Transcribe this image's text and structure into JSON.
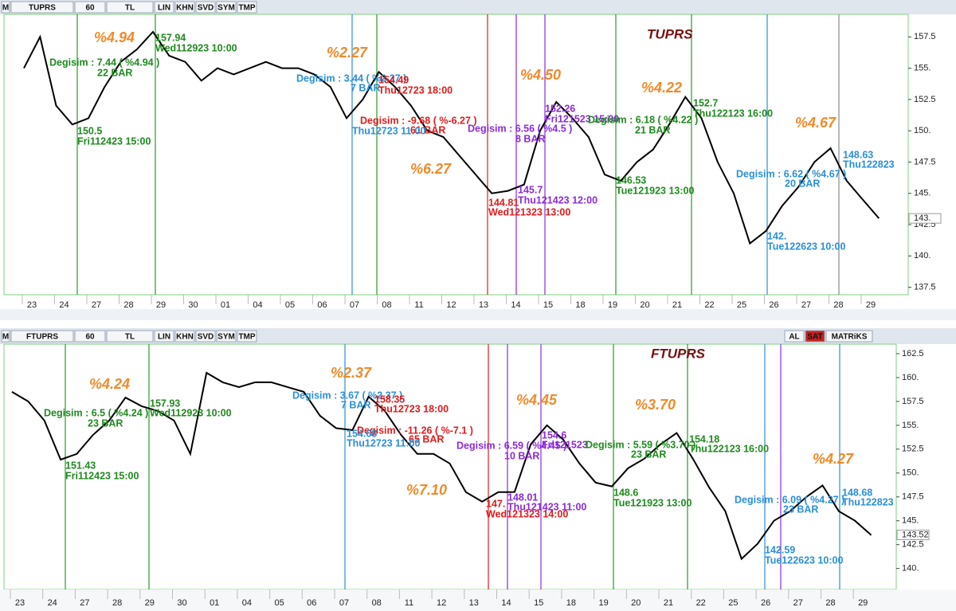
{
  "panels": [
    {
      "toolbar": [
        "M",
        "TUPRS",
        "60",
        "TL",
        "LIN",
        "KHN",
        "SVD",
        "SYM",
        "TMP"
      ],
      "title": "TUPRS",
      "ylim": [
        136.9,
        159.3
      ],
      "yticks": [
        137.5,
        {
          "value": 140,
          "label": "140."
        },
        142.5,
        {
          "value": 145,
          "label": "145."
        },
        147.5,
        {
          "value": 150,
          "label": "150."
        },
        152.5,
        {
          "value": 155,
          "label": "155."
        },
        157.5
      ],
      "last": {
        "value": 143,
        "label": "143."
      },
      "dates": [
        "23",
        "24",
        "27",
        "28",
        "29",
        "30",
        "01",
        "04",
        "05",
        "06",
        "07",
        "08",
        "11",
        "12",
        "13",
        "14",
        "15",
        "18",
        "19",
        "20",
        "21",
        "22",
        "25",
        "26",
        "27",
        "28",
        "29"
      ],
      "prices": [
        155,
        157.5,
        152,
        150.5,
        151,
        153.5,
        155.5,
        156.5,
        157.9,
        156,
        155.5,
        154,
        155,
        154.5,
        155,
        155.5,
        155,
        155,
        154.5,
        153.5,
        151,
        152.5,
        154.7,
        153.5,
        152,
        150,
        149.5,
        148,
        146.5,
        145,
        145.2,
        145.7,
        150,
        152.3,
        151,
        149.5,
        146.5,
        146,
        147.5,
        148.5,
        150.5,
        152.7,
        151,
        147.5,
        145,
        141,
        142,
        144,
        145.5,
        147.5,
        148.6,
        146,
        144.5,
        143
      ],
      "annotations": [
        {
          "text": "%4.94",
          "kind": "pct"
        },
        {
          "text": "157.94",
          "kind": "green"
        },
        {
          "text": "Wed112923 10:00",
          "kind": "green"
        },
        {
          "text": "Degisim : 7.44 ( %4.94 )",
          "kind": "green"
        },
        {
          "text": "22 BAR",
          "kind": "green"
        },
        {
          "text": "150.5",
          "kind": "green"
        },
        {
          "text": "Fri112423 15:00",
          "kind": "green"
        },
        {
          "text": "%2.27",
          "kind": "pct"
        },
        {
          "text": "Degisim : 3.44 ( %2.27 )",
          "kind": "blue"
        },
        {
          "text": "7 BAR",
          "kind": "blue"
        },
        {
          "text": "154.49",
          "kind": "red"
        },
        {
          "text": "Thu12723 18:00",
          "kind": "red"
        },
        {
          "text": "Degisim : -9.68 ( %-6.27 )",
          "kind": "red"
        },
        {
          "text": "61 BAR",
          "kind": "red"
        },
        {
          "text": "Thu12723 11:00",
          "kind": "blue"
        },
        {
          "text": "%6.27",
          "kind": "pct"
        },
        {
          "text": "144.81",
          "kind": "red"
        },
        {
          "text": "Wed121323 13:00",
          "kind": "red"
        },
        {
          "text": "%4.50",
          "kind": "pct"
        },
        {
          "text": "Degisim : 6.56 ( %4.5 )",
          "kind": "purple"
        },
        {
          "text": "8 BAR",
          "kind": "purple"
        },
        {
          "text": "152.26",
          "kind": "purple"
        },
        {
          "text": "Fri121523 15:00",
          "kind": "purple"
        },
        {
          "text": "145.7",
          "kind": "purple"
        },
        {
          "text": "Thu121423 12:00",
          "kind": "purple"
        },
        {
          "text": "%4.22",
          "kind": "pct"
        },
        {
          "text": "Degisim : 6.18 ( %4.22 )",
          "kind": "green"
        },
        {
          "text": "21 BAR",
          "kind": "green"
        },
        {
          "text": "152.7",
          "kind": "green"
        },
        {
          "text": "Thu122123 16:00",
          "kind": "green"
        },
        {
          "text": "146.53",
          "kind": "green"
        },
        {
          "text": "Tue121923 13:00",
          "kind": "green"
        },
        {
          "text": "%4.67",
          "kind": "pct"
        },
        {
          "text": "Degisim : 6.62 ( %4.67 )",
          "kind": "blue"
        },
        {
          "text": "20 BAR",
          "kind": "blue"
        },
        {
          "text": "148.63",
          "kind": "blue"
        },
        {
          "text": "Thu122823",
          "kind": "blue"
        },
        {
          "text": "142.",
          "kind": "blue"
        },
        {
          "text": "Tue122623 10:00",
          "kind": "blue"
        }
      ]
    },
    {
      "toolbar": [
        "M",
        "FTUPRS",
        "60",
        "TL",
        "LIN",
        "KHN",
        "SVD",
        "SYM",
        "TMP",
        "AL",
        "SAT",
        "MATRiKS"
      ],
      "title": "FTUPRS",
      "ylim": [
        137.8,
        163.5
      ],
      "yticks": [
        {
          "value": 140,
          "label": "140."
        },
        142.5,
        {
          "value": 145,
          "label": "145."
        },
        147.5,
        {
          "value": 150,
          "label": "150."
        },
        152.5,
        {
          "value": 155,
          "label": "155."
        },
        157.5,
        {
          "value": 160,
          "label": "160."
        },
        162.5
      ],
      "last": {
        "value": 143.52,
        "label": "143.52"
      },
      "dates": [
        "23",
        "24",
        "27",
        "28",
        "29",
        "30",
        "01",
        "04",
        "05",
        "06",
        "07",
        "08",
        "11",
        "12",
        "13",
        "14",
        "15",
        "18",
        "19",
        "20",
        "21",
        "22",
        "25",
        "26",
        "27",
        "28",
        "29"
      ],
      "prices": [
        158.5,
        157.5,
        155.5,
        151.4,
        152,
        154,
        155.5,
        157.9,
        157,
        156.5,
        155.5,
        152,
        160.5,
        159.5,
        159,
        159.5,
        159.5,
        159,
        158.5,
        156,
        154.7,
        154.5,
        158,
        156.5,
        154,
        152,
        152,
        151,
        148,
        147,
        148,
        148.01,
        153,
        155,
        153.5,
        151,
        149,
        148.6,
        150.5,
        151.5,
        153,
        154.2,
        151.5,
        148.5,
        146,
        141,
        142.6,
        145,
        146,
        147.5,
        148.7,
        146,
        145,
        143.5
      ],
      "annotations": [
        {
          "text": "%4.24",
          "kind": "pct"
        },
        {
          "text": "157.93",
          "kind": "green"
        },
        {
          "text": "Wed112923 10:00",
          "kind": "green"
        },
        {
          "text": "Degisim : 6.5 ( %4.24 )",
          "kind": "green"
        },
        {
          "text": "23 BAR",
          "kind": "green"
        },
        {
          "text": "151.43",
          "kind": "green"
        },
        {
          "text": "Fri112423 15:00",
          "kind": "green"
        },
        {
          "text": "%2.37",
          "kind": "pct"
        },
        {
          "text": "Degisim : 3.67 ( %2.37 )",
          "kind": "blue"
        },
        {
          "text": "7 BAR",
          "kind": "blue"
        },
        {
          "text": "158.35",
          "kind": "red"
        },
        {
          "text": "Thu12723 18:00",
          "kind": "red"
        },
        {
          "text": "Degisim : -11.26 ( %-7.1 )",
          "kind": "red"
        },
        {
          "text": "65 BAR",
          "kind": "red"
        },
        {
          "text": "154.68",
          "kind": "blue"
        },
        {
          "text": "Thu12723 11:00",
          "kind": "blue"
        },
        {
          "text": "%7.10",
          "kind": "pct"
        },
        {
          "text": "147.",
          "kind": "red"
        },
        {
          "text": "Wed121323 14:00",
          "kind": "red"
        },
        {
          "text": "%4.45",
          "kind": "pct"
        },
        {
          "text": "Degisim : 6.59 ( %4.45 )",
          "kind": "purple"
        },
        {
          "text": "10 BAR",
          "kind": "purple"
        },
        {
          "text": "154.6",
          "kind": "purple"
        },
        {
          "text": "Fri121523",
          "kind": "purple"
        },
        {
          "text": "148.01",
          "kind": "purple"
        },
        {
          "text": "Thu121423 11:00",
          "kind": "purple"
        },
        {
          "text": "%3.70",
          "kind": "pct"
        },
        {
          "text": "Degisim : 5.59 ( %3.70 )",
          "kind": "green"
        },
        {
          "text": "23 BAR",
          "kind": "green"
        },
        {
          "text": "154.18",
          "kind": "green"
        },
        {
          "text": "Thu122123 16:00",
          "kind": "green"
        },
        {
          "text": "148.6",
          "kind": "green"
        },
        {
          "text": "Tue121923 13:00",
          "kind": "green"
        },
        {
          "text": "%4.27",
          "kind": "pct"
        },
        {
          "text": "Degisim : 6.09 ( %4.27 )",
          "kind": "blue"
        },
        {
          "text": "23 BAR",
          "kind": "blue"
        },
        {
          "text": "148.68",
          "kind": "blue"
        },
        {
          "text": "Thu122823",
          "kind": "blue"
        },
        {
          "text": "142.59",
          "kind": "blue"
        },
        {
          "text": "Tue122623 10:00",
          "kind": "blue"
        }
      ]
    }
  ]
}
